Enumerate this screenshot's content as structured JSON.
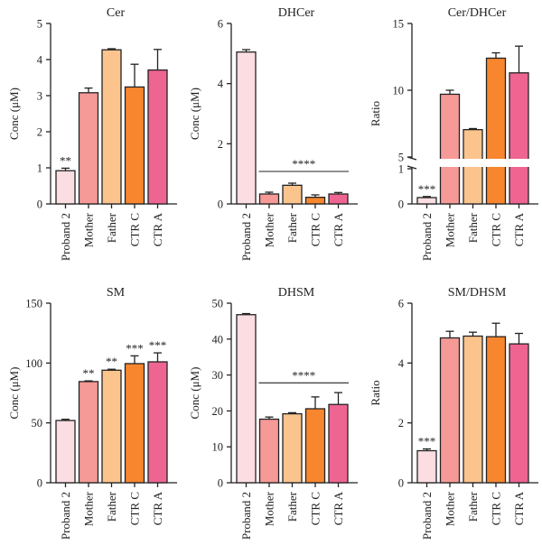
{
  "chart_data": [
    {
      "type": "bar",
      "title": "Cer",
      "ylabel": "Conc (μM)",
      "categories": [
        "Proband 2",
        "Mother",
        "Father",
        "CTR C",
        "CTR A"
      ],
      "values": [
        0.92,
        3.08,
        4.27,
        3.24,
        3.71
      ],
      "errors": [
        0.07,
        0.13,
        0.03,
        0.63,
        0.57
      ],
      "ylim": [
        0,
        5
      ],
      "yticks": [
        "0",
        "1",
        "2",
        "3",
        "4",
        "5"
      ],
      "annotations": [
        {
          "category": "Proband 2",
          "text": "**"
        }
      ]
    },
    {
      "type": "bar",
      "title": "DHCer",
      "ylabel": "Conc (μM)",
      "categories": [
        "Proband 2",
        "Mother",
        "Father",
        "CTR C",
        "CTR A"
      ],
      "values": [
        5.05,
        0.33,
        0.62,
        0.22,
        0.33
      ],
      "errors": [
        0.08,
        0.06,
        0.07,
        0.08,
        0.05
      ],
      "ylim": [
        0,
        6
      ],
      "yticks": [
        "0",
        "2",
        "4",
        "6"
      ],
      "bracket": {
        "from": "Mother",
        "to": "CTR A",
        "text": "****",
        "y": 1.08
      }
    },
    {
      "type": "bar",
      "title": "Cer/DHCer",
      "ylabel": "Ratio",
      "categories": [
        "Proband 2",
        "Mother",
        "Father",
        "CTR C",
        "CTR A"
      ],
      "values": [
        0.18,
        9.7,
        7.05,
        12.4,
        11.3
      ],
      "errors": [
        0.03,
        0.3,
        0.08,
        0.4,
        2.0
      ],
      "broken_axis": {
        "lower": [
          0,
          1
        ],
        "upper": [
          5,
          15
        ]
      },
      "yticks": [
        "0",
        "1",
        "5",
        "10",
        "15"
      ],
      "annotations": [
        {
          "category": "Proband 2",
          "text": "***"
        }
      ]
    },
    {
      "type": "bar",
      "title": "SM",
      "ylabel": "Conc (μM)",
      "categories": [
        "Proband 2",
        "Mother",
        "Father",
        "CTR C",
        "CTR A"
      ],
      "values": [
        52,
        84.5,
        94,
        99.5,
        101
      ],
      "errors": [
        1,
        0.6,
        0.8,
        6.5,
        7.5
      ],
      "ylim": [
        0,
        150
      ],
      "yticks": [
        "0",
        "50",
        "100",
        "150"
      ],
      "annotations": [
        {
          "category": "Mother",
          "text": "**"
        },
        {
          "category": "Father",
          "text": "**"
        },
        {
          "category": "CTR C",
          "text": "***"
        },
        {
          "category": "CTR A",
          "text": "***"
        }
      ]
    },
    {
      "type": "bar",
      "title": "DHSM",
      "ylabel": "Conc (μM)",
      "categories": [
        "Proband 2",
        "Mother",
        "Father",
        "CTR C",
        "CTR A"
      ],
      "values": [
        46.8,
        17.7,
        19.2,
        20.6,
        21.8
      ],
      "errors": [
        0.3,
        0.6,
        0.3,
        3.3,
        3.3
      ],
      "ylim": [
        0,
        50
      ],
      "yticks": [
        "0",
        "10",
        "20",
        "30",
        "40",
        "50"
      ],
      "bracket": {
        "from": "Mother",
        "to": "CTR A",
        "text": "****",
        "y": 27.8
      }
    },
    {
      "type": "bar",
      "title": "SM/DHSM",
      "ylabel": "Ratio",
      "categories": [
        "Proband 2",
        "Mother",
        "Father",
        "CTR C",
        "CTR A"
      ],
      "values": [
        1.07,
        4.84,
        4.9,
        4.88,
        4.64
      ],
      "errors": [
        0.06,
        0.22,
        0.13,
        0.45,
        0.35
      ],
      "ylim": [
        0,
        6
      ],
      "yticks": [
        "0",
        "2",
        "4",
        "6"
      ],
      "annotations": [
        {
          "category": "Proband 2",
          "text": "***"
        }
      ]
    }
  ],
  "colors": {
    "Proband 2": "#fcdde2",
    "Mother": "#f59a97",
    "Father": "#fbc48d",
    "CTR C": "#f7862e",
    "CTR A": "#ee6592"
  }
}
